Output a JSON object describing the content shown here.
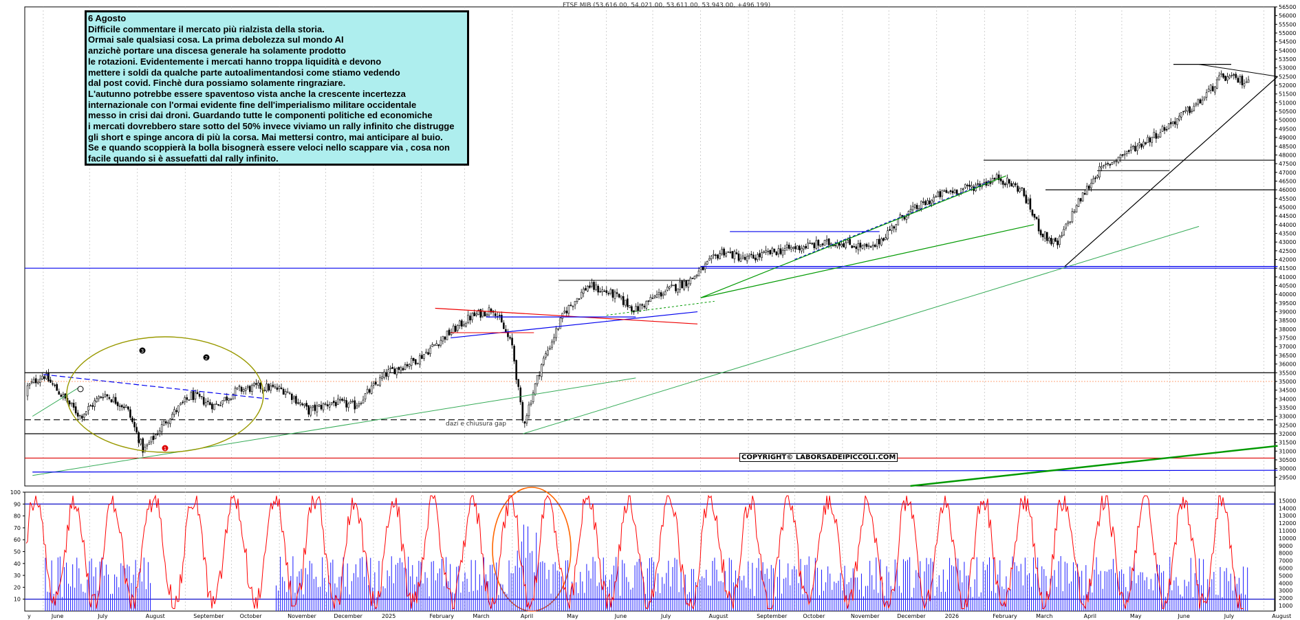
{
  "header": "FTSE MIB (53,616.00, 54,021.00, 53,611.00, 53,943.00, +496.199)",
  "note": {
    "lines": [
      "6 Agosto",
      "Difficile commentare il mercato più rialzista della storia.",
      "Ormai sale qualsiasi cosa. La prima debolezza sul mondo AI",
      "anzichè portare una discesa generale ha solamente prodotto",
      "le rotazioni. Evidentemente i mercati hanno troppa liquidità e devono",
      "mettere i soldi da qualche parte autoalimentandosi come stiamo vedendo",
      "dal post covid. Finchè dura possiamo solamente ringraziare.",
      "L'autunno potrebbe essere spaventoso vista anche la crescente incertezza",
      "internazionale con l'ormai evidente fine dell'imperialismo militare occidentale",
      "messo in crisi dai droni. Guardando tutte le componenti politiche ed economiche",
      "i mercati dovrebbero stare sotto del 50% invece viviamo un rally infinito che distrugge",
      "gli short e spinge ancora di più la  corsa.  Mai mettersi contro, mai anticipare al buio.",
      "Se e quando scoppierà la bolla bisognerà essere veloci nello scappare via , cosa non",
      "facile quando si è assuefatti dal rally infinito."
    ]
  },
  "copyright": "COPYRIGHT© LABORSADEIPICCOLI.COM",
  "annotation_gap": "dazi e chiusura gap",
  "colors": {
    "candle": "#000000",
    "oscillator": "#ff0000",
    "volume": "#1a1aff",
    "trend_green": "#009900",
    "trend_blue": "#0000ee",
    "trend_red": "#ee0000",
    "ellipse": "#999900",
    "circle": "#ff6600",
    "grid": "#bbbbbb"
  },
  "chart_data": [
    {
      "type": "candlestick",
      "title": "FTSE MIB",
      "ylim": [
        29000,
        56500
      ],
      "y_ticks": [
        29500,
        30000,
        30500,
        31000,
        31500,
        32000,
        32500,
        33000,
        33500,
        34000,
        34500,
        35000,
        35500,
        36000,
        36500,
        37000,
        37500,
        38000,
        38500,
        39000,
        39500,
        40000,
        40500,
        41000,
        41500,
        42000,
        42500,
        43000,
        43500,
        44000,
        44500,
        45000,
        45500,
        46000,
        46500,
        47000,
        47500,
        48000,
        48500,
        49000,
        49500,
        50000,
        50500,
        51000,
        51500,
        52000,
        52500,
        53000,
        53500,
        54000,
        54500,
        55000,
        55500,
        56000,
        56500
      ],
      "x_labels": [
        "y",
        "June",
        "July",
        "August",
        "September",
        "October",
        "November",
        "December",
        "2025",
        "February",
        "March",
        "April",
        "May",
        "June",
        "July",
        "August",
        "September",
        "October",
        "November",
        "December",
        "2026",
        "February",
        "March",
        "April",
        "May",
        "June",
        "July",
        "August"
      ],
      "close_path": [
        [
          "2024-05",
          34200
        ],
        [
          "2024-06-01",
          35400
        ],
        [
          "2024-06-10",
          34500
        ],
        [
          "2024-06-25",
          33000
        ],
        [
          "2024-07-10",
          34300
        ],
        [
          "2024-07-25",
          33500
        ],
        [
          "2024-08-05",
          31000
        ],
        [
          "2024-08-20",
          32800
        ],
        [
          "2024-09-05",
          34200
        ],
        [
          "2024-09-20",
          33600
        ],
        [
          "2024-10-05",
          34500
        ],
        [
          "2024-10-20",
          34700
        ],
        [
          "2024-11-05",
          34500
        ],
        [
          "2024-11-20",
          33300
        ],
        [
          "2024-12-05",
          33800
        ],
        [
          "2024-12-20",
          33600
        ],
        [
          "2025-01-10",
          35500
        ],
        [
          "2025-01-30",
          36300
        ],
        [
          "2025-02-15",
          37500
        ],
        [
          "2025-03-05",
          38700
        ],
        [
          "2025-03-20",
          39200
        ],
        [
          "2025-04-01",
          37000
        ],
        [
          "2025-04-08",
          32500
        ],
        [
          "2025-04-20",
          36000
        ],
        [
          "2025-05-05",
          39000
        ],
        [
          "2025-05-20",
          40500
        ],
        [
          "2025-06-05",
          40000
        ],
        [
          "2025-06-20",
          39100
        ],
        [
          "2025-07-05",
          40000
        ],
        [
          "2025-07-25",
          40800
        ],
        [
          "2025-08-15",
          42500
        ],
        [
          "2025-08-30",
          42000
        ],
        [
          "2025-09-20",
          42500
        ],
        [
          "2025-10-10",
          42800
        ],
        [
          "2025-10-30",
          43000
        ],
        [
          "2025-11-20",
          42600
        ],
        [
          "2025-12-10",
          44500
        ],
        [
          "2026-01-05",
          45800
        ],
        [
          "2026-01-25",
          46200
        ],
        [
          "2026-02-10",
          46700
        ],
        [
          "2026-02-25",
          46000
        ],
        [
          "2026-03-10",
          43500
        ],
        [
          "2026-03-20",
          42800
        ],
        [
          "2026-04-01",
          45000
        ],
        [
          "2026-04-15",
          47000
        ],
        [
          "2026-05-01",
          48000
        ],
        [
          "2026-05-20",
          49000
        ],
        [
          "2026-06-05",
          50000
        ],
        [
          "2026-06-20",
          51000
        ],
        [
          "2026-07-05",
          52500
        ],
        [
          "2026-07-20",
          52200
        ],
        [
          "2026-08-06",
          53943
        ]
      ],
      "horizontal_levels": [
        32800,
        32000,
        30600,
        35500,
        41500,
        46000,
        47700,
        53200
      ],
      "markers": [
        "1",
        "2",
        "3"
      ]
    },
    {
      "type": "line+bar",
      "oscillator_ylim": [
        0,
        100
      ],
      "oscillator_ticks": [
        10,
        20,
        30,
        40,
        50,
        60,
        70,
        80,
        90,
        100
      ],
      "oscillator_levels": [
        10,
        90
      ],
      "volume_ticks": [
        1000,
        2000,
        3000,
        4000,
        5000,
        6000,
        7000,
        8000,
        9000,
        10000,
        11000,
        12000,
        13000,
        14000,
        15000
      ]
    }
  ]
}
